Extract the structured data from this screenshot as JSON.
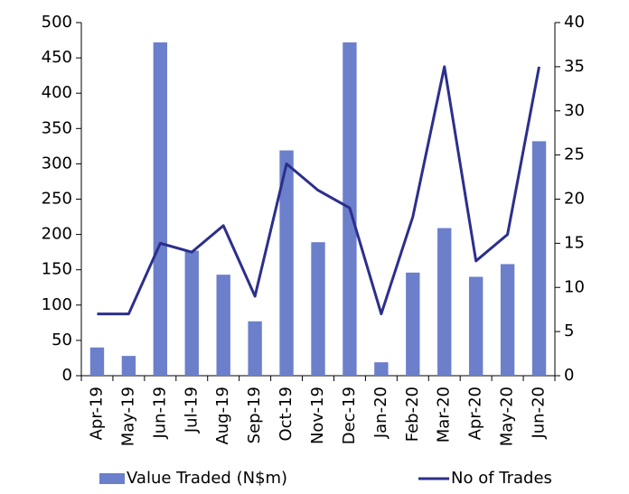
{
  "chart_data": {
    "type": "bar",
    "categories": [
      "Apr-19",
      "May-19",
      "Jun-19",
      "Jul-19",
      "Aug-19",
      "Sep-19",
      "Oct-19",
      "Nov-19",
      "Dec-19",
      "Jan-20",
      "Feb-20",
      "Mar-20",
      "Apr-20",
      "May-20",
      "Jun-20"
    ],
    "series": [
      {
        "name": "Value Traded (N$m)",
        "color": "#6b7fcb",
        "type": "bar",
        "values": [
          40,
          28,
          472,
          177,
          143,
          77,
          319,
          189,
          472,
          19,
          146,
          209,
          140,
          158,
          332
        ]
      },
      {
        "name": "No of Trades",
        "color": "#2b2f8c",
        "type": "line",
        "axis": "y2",
        "values": [
          7,
          7,
          15,
          14,
          17,
          9,
          24,
          21,
          19,
          7,
          18,
          35,
          13,
          16,
          35
        ]
      }
    ],
    "ylim": [
      0,
      500
    ],
    "yticks": [
      0,
      50,
      100,
      150,
      200,
      250,
      300,
      350,
      400,
      450,
      500
    ],
    "y2lim": [
      0,
      40
    ],
    "y2ticks": [
      0,
      5,
      10,
      15,
      20,
      25,
      30,
      35,
      40
    ],
    "legend": "bottom"
  }
}
